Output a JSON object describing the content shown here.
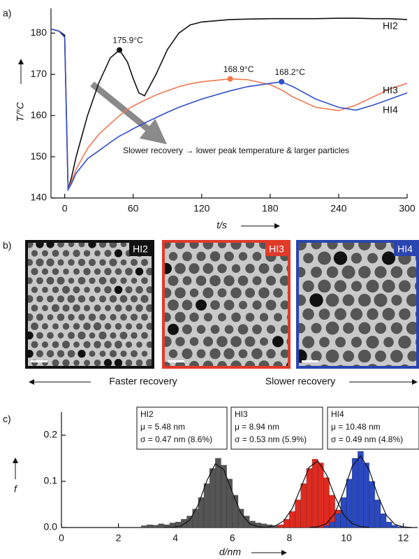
{
  "chart_data": [
    {
      "type": "line",
      "panel_label": "a)",
      "xlabel": "t/s",
      "ylabel": "T/°C",
      "annotation": "Slower recovery → lower peak temperature & larger particles",
      "xlim": [
        -12,
        300
      ],
      "xticks": [
        0,
        60,
        120,
        180,
        240,
        300
      ],
      "ylim": [
        140,
        186
      ],
      "yticks": [
        140,
        150,
        160,
        170,
        180
      ],
      "x": [
        -12,
        -5,
        0,
        3,
        6,
        10,
        20,
        30,
        40,
        48,
        55,
        60,
        65,
        70,
        80,
        90,
        100,
        110,
        120,
        145,
        160,
        180,
        190,
        200,
        220,
        240,
        255,
        270,
        285,
        300
      ],
      "series": [
        {
          "name": "HI2",
          "color": "#111111",
          "values": [
            181,
            180.5,
            179.5,
            142,
            145,
            150,
            160,
            168,
            174,
            175.9,
            173,
            169,
            165.5,
            164.8,
            170,
            176,
            180,
            182,
            182.7,
            183.3,
            183.4,
            183.5,
            183.5,
            183.5,
            183.5,
            183.6,
            183.6,
            183.5,
            183.5,
            183.3
          ],
          "peak": {
            "x": 48,
            "y": 175.9,
            "label": "175.9°C"
          }
        },
        {
          "name": "HI3",
          "color": "#f07850",
          "values": [
            181,
            180.5,
            179,
            142,
            144,
            147,
            152,
            155.5,
            158,
            160,
            161.5,
            162.3,
            163,
            163.7,
            165,
            166,
            167,
            167.7,
            168.2,
            168.9,
            168.7,
            167.5,
            166.2,
            164.5,
            162,
            161.2,
            162.5,
            164.5,
            166.5,
            167.8
          ],
          "peak": {
            "x": 145,
            "y": 168.9,
            "label": "168.9°C"
          }
        },
        {
          "name": "HI4",
          "color": "#3050c8",
          "values": [
            181,
            180.5,
            179,
            142,
            143.5,
            146,
            149.5,
            151.5,
            153.5,
            155,
            156,
            156.8,
            157.5,
            158.2,
            159.5,
            160.8,
            162,
            163,
            164,
            166,
            167,
            167.8,
            168.2,
            167,
            164,
            162,
            161.3,
            162.5,
            164,
            165.5
          ],
          "peak": {
            "x": 190,
            "y": 168.2,
            "label": "168.2°C"
          }
        }
      ]
    },
    {
      "type": "histogram",
      "panel_label": "c)",
      "xlabel": "d/nm",
      "ylabel": "f",
      "xlim": [
        0,
        12.5
      ],
      "xticks": [
        0,
        2,
        4,
        6,
        8,
        10,
        12
      ],
      "ylim": [
        0,
        0.25
      ],
      "yticks": [
        {
          "value": 0,
          "label": "0.0"
        },
        0.1,
        0.2
      ],
      "series": [
        {
          "name": "HI2",
          "color": "#555555",
          "stats": [
            "μ = 5.48 nm",
            "σ = 0.47 nm (8.6%)"
          ],
          "bins": [
            2.8,
            3.0,
            3.2,
            3.4,
            3.6,
            3.8,
            4.0,
            4.2,
            4.4,
            4.6,
            4.8,
            5.0,
            5.2,
            5.4,
            5.6,
            5.8,
            6.0,
            6.2,
            6.4,
            6.6,
            6.8,
            7.0,
            7.2,
            7.4,
            7.6,
            7.8,
            8.0
          ],
          "values": [
            0.004,
            0.006,
            0.005,
            0.008,
            0.006,
            0.01,
            0.012,
            0.018,
            0.025,
            0.04,
            0.065,
            0.095,
            0.128,
            0.15,
            0.135,
            0.105,
            0.07,
            0.04,
            0.025,
            0.014,
            0.01,
            0.008,
            0.006,
            0.004,
            0.003,
            0.002
          ]
        },
        {
          "name": "HI3",
          "color": "#e02a20",
          "stats": [
            "μ = 8.94 nm",
            "σ = 0.53 nm (5.9%)"
          ],
          "bins": [
            7.6,
            7.8,
            8.0,
            8.2,
            8.4,
            8.6,
            8.8,
            9.0,
            9.2,
            9.4,
            9.6,
            9.8,
            10.0,
            10.2
          ],
          "values": [
            0.006,
            0.018,
            0.035,
            0.06,
            0.095,
            0.128,
            0.148,
            0.14,
            0.108,
            0.07,
            0.038,
            0.015,
            0.005
          ]
        },
        {
          "name": "HI4",
          "color": "#2a48c0",
          "stats": [
            "μ = 10.48 nm",
            "σ = 0.49 nm (4.8%)"
          ],
          "bins": [
            9.2,
            9.4,
            9.6,
            9.8,
            10.0,
            10.2,
            10.4,
            10.6,
            10.8,
            11.0,
            11.2,
            11.4,
            11.6,
            11.8,
            12.0
          ],
          "values": [
            0.004,
            0.012,
            0.03,
            0.065,
            0.105,
            0.15,
            0.165,
            0.14,
            0.1,
            0.06,
            0.03,
            0.012,
            0.005,
            0.002
          ]
        }
      ],
      "fit_curves": [
        {
          "x": [
            3.6,
            3.9,
            4.2,
            4.5,
            4.8,
            5.1,
            5.4,
            5.7,
            6.0,
            6.3,
            6.6,
            6.9,
            7.2
          ],
          "values": [
            0.0,
            0.0005,
            0.0034,
            0.016,
            0.049,
            0.101,
            0.138,
            0.125,
            0.076,
            0.031,
            0.008,
            0.0015,
            0.0002
          ]
        },
        {
          "x": [
            7.2,
            7.5,
            7.8,
            8.1,
            8.4,
            8.7,
            9.0,
            9.3,
            9.6,
            9.9,
            10.2,
            10.5,
            10.8
          ],
          "values": [
            0.0007,
            0.0036,
            0.0143,
            0.041,
            0.086,
            0.131,
            0.144,
            0.115,
            0.067,
            0.028,
            0.0086,
            0.0019,
            0.0003
          ]
        },
        {
          "x": [
            8.7,
            9.0,
            9.3,
            9.6,
            9.9,
            10.2,
            10.5,
            10.8,
            11.1,
            11.4,
            11.7,
            12.0,
            12.3
          ],
          "values": [
            0.0002,
            0.0016,
            0.0085,
            0.031,
            0.077,
            0.132,
            0.155,
            0.125,
            0.07,
            0.027,
            0.007,
            0.0013,
            0.0002
          ]
        }
      ]
    }
  ],
  "panel_b": {
    "panel_label": "b)",
    "images": [
      {
        "label": "HI2"
      },
      {
        "label": "HI3"
      },
      {
        "label": "HI4"
      }
    ],
    "left_caption": "Faster recovery",
    "right_caption": "Slower recovery"
  }
}
